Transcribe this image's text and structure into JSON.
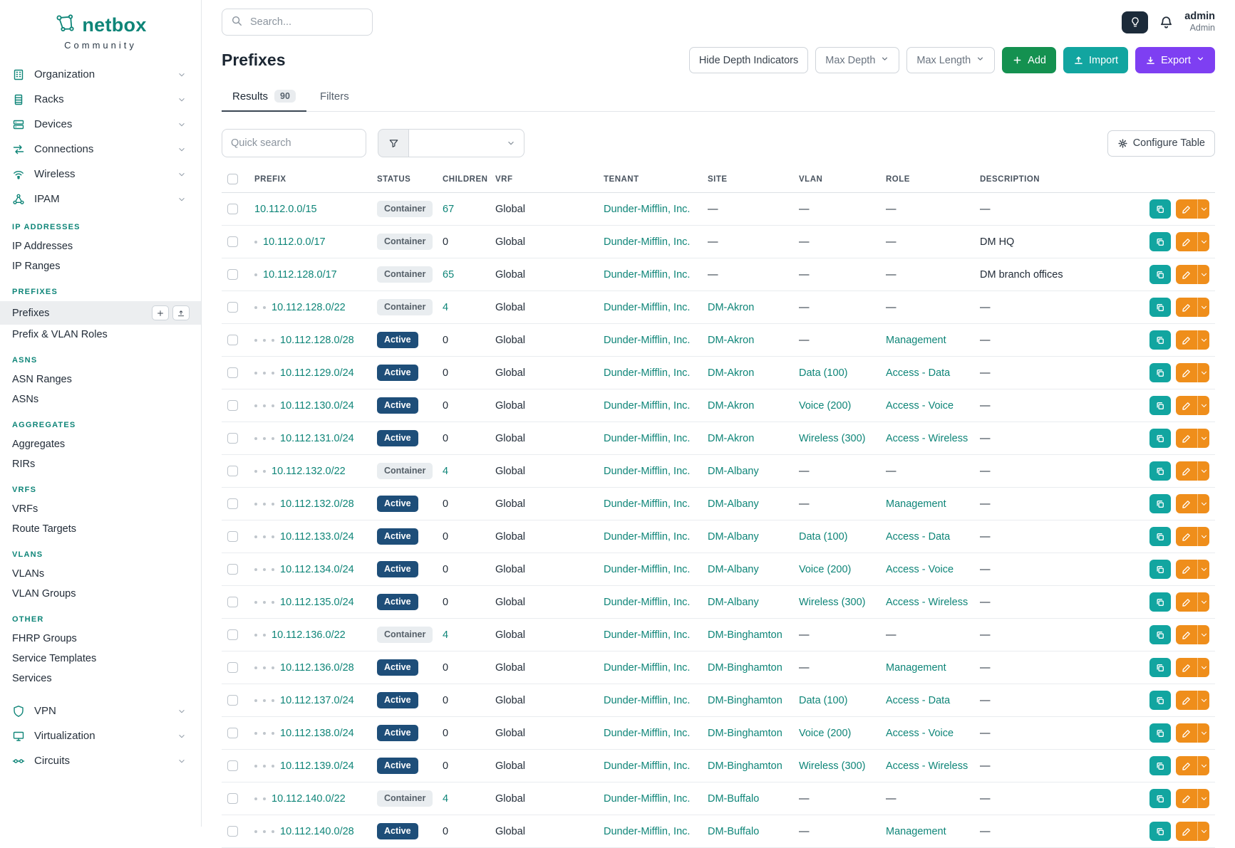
{
  "brand": {
    "name": "netbox",
    "subtitle": "Community"
  },
  "topbar": {
    "search_placeholder": "Search...",
    "user_name": "admin",
    "user_role": "Admin"
  },
  "sidebar": {
    "groups_top": [
      {
        "label": "Organization",
        "icon": "organization-icon"
      },
      {
        "label": "Racks",
        "icon": "racks-icon"
      },
      {
        "label": "Devices",
        "icon": "devices-icon"
      },
      {
        "label": "Connections",
        "icon": "connections-icon"
      },
      {
        "label": "Wireless",
        "icon": "wireless-icon"
      },
      {
        "label": "IPAM",
        "icon": "ipam-icon"
      }
    ],
    "ipam_sections": [
      {
        "heading": "IP ADDRESSES",
        "items": [
          {
            "label": "IP Addresses"
          },
          {
            "label": "IP Ranges"
          }
        ]
      },
      {
        "heading": "PREFIXES",
        "items": [
          {
            "label": "Prefixes",
            "active": true
          },
          {
            "label": "Prefix & VLAN Roles"
          }
        ]
      },
      {
        "heading": "ASNS",
        "items": [
          {
            "label": "ASN Ranges"
          },
          {
            "label": "ASNs"
          }
        ]
      },
      {
        "heading": "AGGREGATES",
        "items": [
          {
            "label": "Aggregates"
          },
          {
            "label": "RIRs"
          }
        ]
      },
      {
        "heading": "VRFS",
        "items": [
          {
            "label": "VRFs"
          },
          {
            "label": "Route Targets"
          }
        ]
      },
      {
        "heading": "VLANS",
        "items": [
          {
            "label": "VLANs"
          },
          {
            "label": "VLAN Groups"
          }
        ]
      },
      {
        "heading": "OTHER",
        "items": [
          {
            "label": "FHRP Groups"
          },
          {
            "label": "Service Templates"
          },
          {
            "label": "Services"
          }
        ]
      }
    ],
    "groups_bottom": [
      {
        "label": "VPN",
        "icon": "vpn-icon"
      },
      {
        "label": "Virtualization",
        "icon": "virtualization-icon"
      },
      {
        "label": "Circuits",
        "icon": "circuits-icon"
      }
    ]
  },
  "page": {
    "title": "Prefixes",
    "hide_depth_label": "Hide Depth Indicators",
    "max_depth_label": "Max Depth",
    "max_length_label": "Max Length",
    "add_label": "Add",
    "import_label": "Import",
    "export_label": "Export",
    "tabs": [
      {
        "label": "Results",
        "badge": "90",
        "active": true
      },
      {
        "label": "Filters",
        "active": false
      }
    ],
    "quick_search_placeholder": "Quick search",
    "configure_table_label": "Configure Table"
  },
  "table": {
    "columns": [
      "PREFIX",
      "STATUS",
      "CHILDREN",
      "VRF",
      "TENANT",
      "SITE",
      "VLAN",
      "ROLE",
      "DESCRIPTION"
    ],
    "rows": [
      {
        "depth": 0,
        "prefix": "10.112.0.0/15",
        "status": "Container",
        "children": "67",
        "vrf": "Global",
        "tenant": "Dunder-Mifflin, Inc.",
        "site": "—",
        "vlan": "—",
        "role": "—",
        "description": "—"
      },
      {
        "depth": 1,
        "prefix": "10.112.0.0/17",
        "status": "Container",
        "children": "0",
        "vrf": "Global",
        "tenant": "Dunder-Mifflin, Inc.",
        "site": "—",
        "vlan": "—",
        "role": "—",
        "description": "DM HQ"
      },
      {
        "depth": 1,
        "prefix": "10.112.128.0/17",
        "status": "Container",
        "children": "65",
        "vrf": "Global",
        "tenant": "Dunder-Mifflin, Inc.",
        "site": "—",
        "vlan": "—",
        "role": "—",
        "description": "DM branch offices"
      },
      {
        "depth": 2,
        "prefix": "10.112.128.0/22",
        "status": "Container",
        "children": "4",
        "vrf": "Global",
        "tenant": "Dunder-Mifflin, Inc.",
        "site": "DM-Akron",
        "vlan": "—",
        "role": "—",
        "description": "—"
      },
      {
        "depth": 3,
        "prefix": "10.112.128.0/28",
        "status": "Active",
        "children": "0",
        "vrf": "Global",
        "tenant": "Dunder-Mifflin, Inc.",
        "site": "DM-Akron",
        "vlan": "—",
        "role": "Management",
        "description": "—"
      },
      {
        "depth": 3,
        "prefix": "10.112.129.0/24",
        "status": "Active",
        "children": "0",
        "vrf": "Global",
        "tenant": "Dunder-Mifflin, Inc.",
        "site": "DM-Akron",
        "vlan": "Data (100)",
        "role": "Access - Data",
        "description": "—"
      },
      {
        "depth": 3,
        "prefix": "10.112.130.0/24",
        "status": "Active",
        "children": "0",
        "vrf": "Global",
        "tenant": "Dunder-Mifflin, Inc.",
        "site": "DM-Akron",
        "vlan": "Voice (200)",
        "role": "Access - Voice",
        "description": "—"
      },
      {
        "depth": 3,
        "prefix": "10.112.131.0/24",
        "status": "Active",
        "children": "0",
        "vrf": "Global",
        "tenant": "Dunder-Mifflin, Inc.",
        "site": "DM-Akron",
        "vlan": "Wireless (300)",
        "role": "Access - Wireless",
        "description": "—"
      },
      {
        "depth": 2,
        "prefix": "10.112.132.0/22",
        "status": "Container",
        "children": "4",
        "vrf": "Global",
        "tenant": "Dunder-Mifflin, Inc.",
        "site": "DM-Albany",
        "vlan": "—",
        "role": "—",
        "description": "—"
      },
      {
        "depth": 3,
        "prefix": "10.112.132.0/28",
        "status": "Active",
        "children": "0",
        "vrf": "Global",
        "tenant": "Dunder-Mifflin, Inc.",
        "site": "DM-Albany",
        "vlan": "—",
        "role": "Management",
        "description": "—"
      },
      {
        "depth": 3,
        "prefix": "10.112.133.0/24",
        "status": "Active",
        "children": "0",
        "vrf": "Global",
        "tenant": "Dunder-Mifflin, Inc.",
        "site": "DM-Albany",
        "vlan": "Data (100)",
        "role": "Access - Data",
        "description": "—"
      },
      {
        "depth": 3,
        "prefix": "10.112.134.0/24",
        "status": "Active",
        "children": "0",
        "vrf": "Global",
        "tenant": "Dunder-Mifflin, Inc.",
        "site": "DM-Albany",
        "vlan": "Voice (200)",
        "role": "Access - Voice",
        "description": "—"
      },
      {
        "depth": 3,
        "prefix": "10.112.135.0/24",
        "status": "Active",
        "children": "0",
        "vrf": "Global",
        "tenant": "Dunder-Mifflin, Inc.",
        "site": "DM-Albany",
        "vlan": "Wireless (300)",
        "role": "Access - Wireless",
        "description": "—"
      },
      {
        "depth": 2,
        "prefix": "10.112.136.0/22",
        "status": "Container",
        "children": "4",
        "vrf": "Global",
        "tenant": "Dunder-Mifflin, Inc.",
        "site": "DM-Binghamton",
        "vlan": "—",
        "role": "—",
        "description": "—"
      },
      {
        "depth": 3,
        "prefix": "10.112.136.0/28",
        "status": "Active",
        "children": "0",
        "vrf": "Global",
        "tenant": "Dunder-Mifflin, Inc.",
        "site": "DM-Binghamton",
        "vlan": "—",
        "role": "Management",
        "description": "—"
      },
      {
        "depth": 3,
        "prefix": "10.112.137.0/24",
        "status": "Active",
        "children": "0",
        "vrf": "Global",
        "tenant": "Dunder-Mifflin, Inc.",
        "site": "DM-Binghamton",
        "vlan": "Data (100)",
        "role": "Access - Data",
        "description": "—"
      },
      {
        "depth": 3,
        "prefix": "10.112.138.0/24",
        "status": "Active",
        "children": "0",
        "vrf": "Global",
        "tenant": "Dunder-Mifflin, Inc.",
        "site": "DM-Binghamton",
        "vlan": "Voice (200)",
        "role": "Access - Voice",
        "description": "—"
      },
      {
        "depth": 3,
        "prefix": "10.112.139.0/24",
        "status": "Active",
        "children": "0",
        "vrf": "Global",
        "tenant": "Dunder-Mifflin, Inc.",
        "site": "DM-Binghamton",
        "vlan": "Wireless (300)",
        "role": "Access - Wireless",
        "description": "—"
      },
      {
        "depth": 2,
        "prefix": "10.112.140.0/22",
        "status": "Container",
        "children": "4",
        "vrf": "Global",
        "tenant": "Dunder-Mifflin, Inc.",
        "site": "DM-Buffalo",
        "vlan": "—",
        "role": "—",
        "description": "—"
      },
      {
        "depth": 3,
        "prefix": "10.112.140.0/28",
        "status": "Active",
        "children": "0",
        "vrf": "Global",
        "tenant": "Dunder-Mifflin, Inc.",
        "site": "DM-Buffalo",
        "vlan": "—",
        "role": "Management",
        "description": "—"
      }
    ]
  },
  "colors": {
    "brand_teal": "#0e8578",
    "active_badge_blue": "#1e4e79",
    "container_badge_gray": "#e9edf0",
    "add_green": "#149150",
    "import_teal": "#12a5a0",
    "export_purple": "#7e3ff2",
    "edit_orange": "#ef8e1b"
  }
}
